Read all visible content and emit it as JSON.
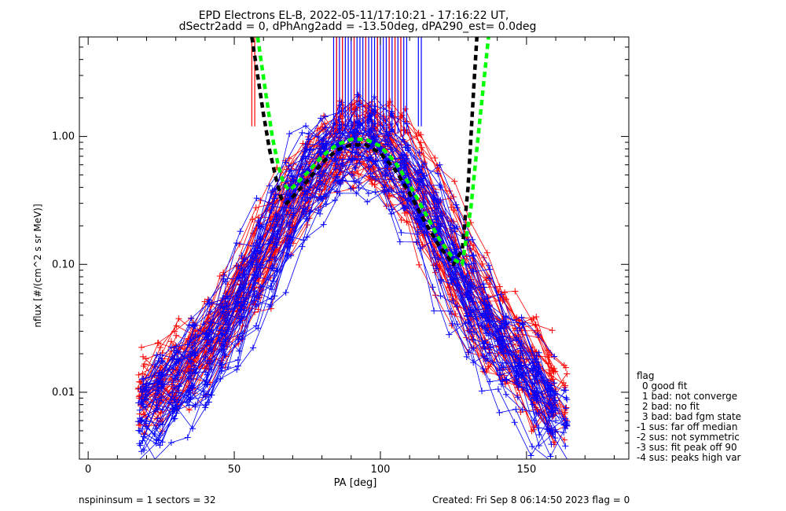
{
  "chart_data": {
    "type": "line",
    "title": "EPD Electrons EL-B, 2022-05-11/17:10:21 - 17:16:22 UT,",
    "subtitle": "dSectr2add = 0, dPhAng2add = -13.50deg, dPA290_est=   0.0deg",
    "xlabel": "PA [deg]",
    "ylabel": "nflux [#/(cm^2 s sr MeV)]",
    "xlim": [
      -3,
      185
    ],
    "ylim": [
      0.003,
      6.0
    ],
    "yscale": "log",
    "xticks": [
      "0",
      "50",
      "100",
      "150"
    ],
    "xtick_values": [
      0,
      50,
      100,
      150
    ],
    "yticks": [
      "0.01",
      "0.10",
      "1.00"
    ],
    "ytick_values": [
      0.01,
      0.1,
      1.0
    ],
    "grid": false,
    "legend_placement": "right, outside plot",
    "colors": {
      "red": "#ff0000",
      "blue": "#0000ff",
      "black": "#000000",
      "green": "#00ff00"
    },
    "series": [
      {
        "color": "red",
        "style": "line with plus markers (many sector traces)",
        "x": [
          18,
          25,
          35,
          45,
          55,
          65,
          75,
          85,
          92,
          100,
          110,
          120,
          130,
          140,
          150,
          160
        ],
        "y": [
          0.008,
          0.012,
          0.018,
          0.03,
          0.07,
          0.2,
          0.5,
          0.85,
          0.95,
          0.85,
          0.5,
          0.2,
          0.07,
          0.03,
          0.018,
          0.008
        ]
      },
      {
        "color": "blue",
        "style": "line with plus markers (many sector traces)",
        "x": [
          18,
          25,
          35,
          45,
          55,
          65,
          75,
          85,
          92,
          100,
          110,
          120,
          130,
          140,
          150,
          160
        ],
        "y": [
          0.006,
          0.009,
          0.014,
          0.025,
          0.06,
          0.18,
          0.45,
          0.8,
          0.92,
          0.8,
          0.45,
          0.18,
          0.06,
          0.025,
          0.014,
          0.006
        ]
      },
      {
        "color": "black",
        "style": "thick dashed fit",
        "x": [
          56,
          58,
          60,
          62,
          64,
          66,
          68,
          75,
          80,
          85,
          90,
          95,
          100,
          105,
          110,
          115,
          120,
          125,
          128,
          130,
          131,
          132,
          133
        ],
        "y": [
          6.0,
          3.0,
          1.5,
          0.8,
          0.5,
          0.33,
          0.3,
          0.45,
          0.62,
          0.78,
          0.86,
          0.86,
          0.74,
          0.55,
          0.36,
          0.22,
          0.14,
          0.1,
          0.13,
          0.4,
          1.0,
          2.5,
          6.0
        ]
      },
      {
        "color": "green",
        "style": "thick dashed fit",
        "x": [
          58,
          61,
          63,
          65,
          67,
          69,
          75,
          80,
          85,
          90,
          95,
          100,
          105,
          110,
          115,
          120,
          125,
          128,
          131,
          133,
          135,
          137
        ],
        "y": [
          6.0,
          2.0,
          1.0,
          0.6,
          0.42,
          0.38,
          0.52,
          0.7,
          0.86,
          0.95,
          0.95,
          0.84,
          0.63,
          0.42,
          0.26,
          0.16,
          0.11,
          0.1,
          0.28,
          0.8,
          2.2,
          6.0
        ]
      },
      {
        "color": "blue",
        "style": "vertical spikes",
        "x": [
          84,
          85,
          86,
          87,
          88,
          89,
          90,
          91,
          92,
          93,
          94,
          95,
          96,
          97,
          98,
          99,
          100,
          101,
          102,
          103,
          104,
          105,
          106,
          107,
          108,
          109,
          113,
          114
        ],
        "y": [
          1.05,
          1.1,
          1.05,
          1.0,
          1.1,
          1.15,
          1.1,
          1.05,
          1.1,
          1.15,
          1.1,
          1.05,
          1.0,
          1.1,
          1.15,
          1.1,
          1.05,
          1.1,
          1.0,
          1.05,
          1.1,
          1.0,
          1.05,
          1.1,
          1.0,
          1.05,
          1.2,
          1.2
        ]
      },
      {
        "color": "red",
        "style": "vertical spikes",
        "x": [
          56,
          57,
          85,
          87,
          91,
          95,
          99,
          103,
          105,
          107
        ],
        "y": [
          1.2,
          1.2,
          1.1,
          1.1,
          1.15,
          1.1,
          1.1,
          1.1,
          1.05,
          1.0
        ]
      }
    ]
  },
  "legend": {
    "title": "flag",
    "items": [
      "0 good fit",
      "1 bad: not converge",
      "2 bad: no fit",
      "3 bad: bad fgm state",
      "-1 sus: far off median",
      "-2 sus: not symmetric",
      "-3 sus: fit peak off 90",
      "-4 sus: peaks high var"
    ]
  },
  "footer": {
    "left": "nspininsum =  1  sectors = 32",
    "right": "Created: Fri Sep  8 06:14:50 2023   flag = 0"
  }
}
